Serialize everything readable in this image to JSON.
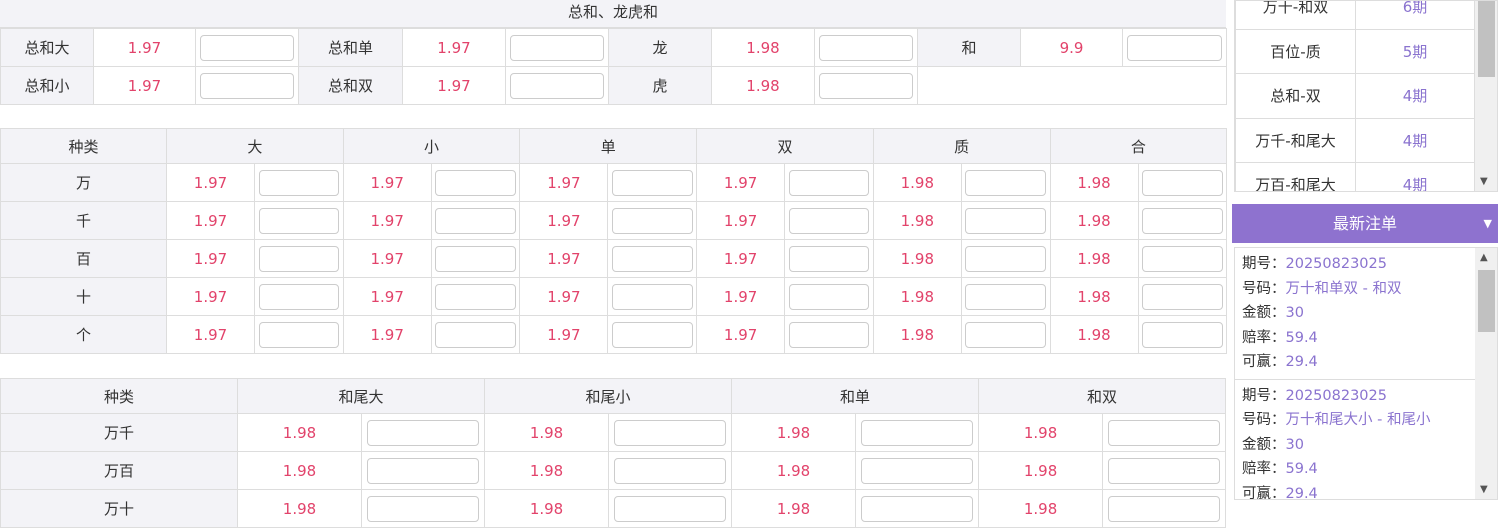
{
  "section1": {
    "title": "总和、龙虎和",
    "rows": [
      [
        {
          "label": "总和大",
          "odds": "1.97"
        },
        {
          "label": "总和单",
          "odds": "1.97"
        },
        {
          "label": "龙",
          "odds": "1.98"
        },
        {
          "label": "和",
          "odds": "9.9"
        }
      ],
      [
        {
          "label": "总和小",
          "odds": "1.97"
        },
        {
          "label": "总和双",
          "odds": "1.97"
        },
        {
          "label": "虎",
          "odds": "1.98"
        }
      ]
    ]
  },
  "section2": {
    "headers": [
      "种类",
      "大",
      "小",
      "单",
      "双",
      "质",
      "合"
    ],
    "rows": [
      {
        "label": "万",
        "odds": [
          "1.97",
          "1.97",
          "1.97",
          "1.97",
          "1.98",
          "1.98"
        ]
      },
      {
        "label": "千",
        "odds": [
          "1.97",
          "1.97",
          "1.97",
          "1.97",
          "1.98",
          "1.98"
        ]
      },
      {
        "label": "百",
        "odds": [
          "1.97",
          "1.97",
          "1.97",
          "1.97",
          "1.98",
          "1.98"
        ]
      },
      {
        "label": "十",
        "odds": [
          "1.97",
          "1.97",
          "1.97",
          "1.97",
          "1.98",
          "1.98"
        ]
      },
      {
        "label": "个",
        "odds": [
          "1.97",
          "1.97",
          "1.97",
          "1.97",
          "1.98",
          "1.98"
        ]
      }
    ]
  },
  "section3": {
    "headers": [
      "种类",
      "和尾大",
      "和尾小",
      "和单",
      "和双"
    ],
    "rows": [
      {
        "label": "万千",
        "odds": [
          "1.98",
          "1.98",
          "1.98",
          "1.98"
        ]
      },
      {
        "label": "万百",
        "odds": [
          "1.98",
          "1.98",
          "1.98",
          "1.98"
        ]
      },
      {
        "label": "万十",
        "odds": [
          "1.98",
          "1.98",
          "1.98",
          "1.98"
        ]
      }
    ]
  },
  "streaks": [
    {
      "name": "万十-和双",
      "count": "6期"
    },
    {
      "name": "百位-质",
      "count": "5期"
    },
    {
      "name": "总和-双",
      "count": "4期"
    },
    {
      "name": "万千-和尾大",
      "count": "4期"
    },
    {
      "name": "万百-和尾大",
      "count": "4期"
    }
  ],
  "latest": {
    "title": "最新注单",
    "labels": {
      "period": "期号：",
      "number": "号码：",
      "amount": "金额：",
      "rate": "赔率：",
      "win": "可赢："
    },
    "entries": [
      {
        "period": "20250823025",
        "number": "万十和单双 - 和双",
        "amount": "30",
        "rate": "59.4",
        "win": "29.4"
      },
      {
        "period": "20250823025",
        "number": "万十和尾大小 - 和尾小",
        "amount": "30",
        "rate": "59.4",
        "win": "29.4"
      }
    ]
  },
  "colors": {
    "accent": "#8e72cf",
    "odds": "#e2436b"
  }
}
